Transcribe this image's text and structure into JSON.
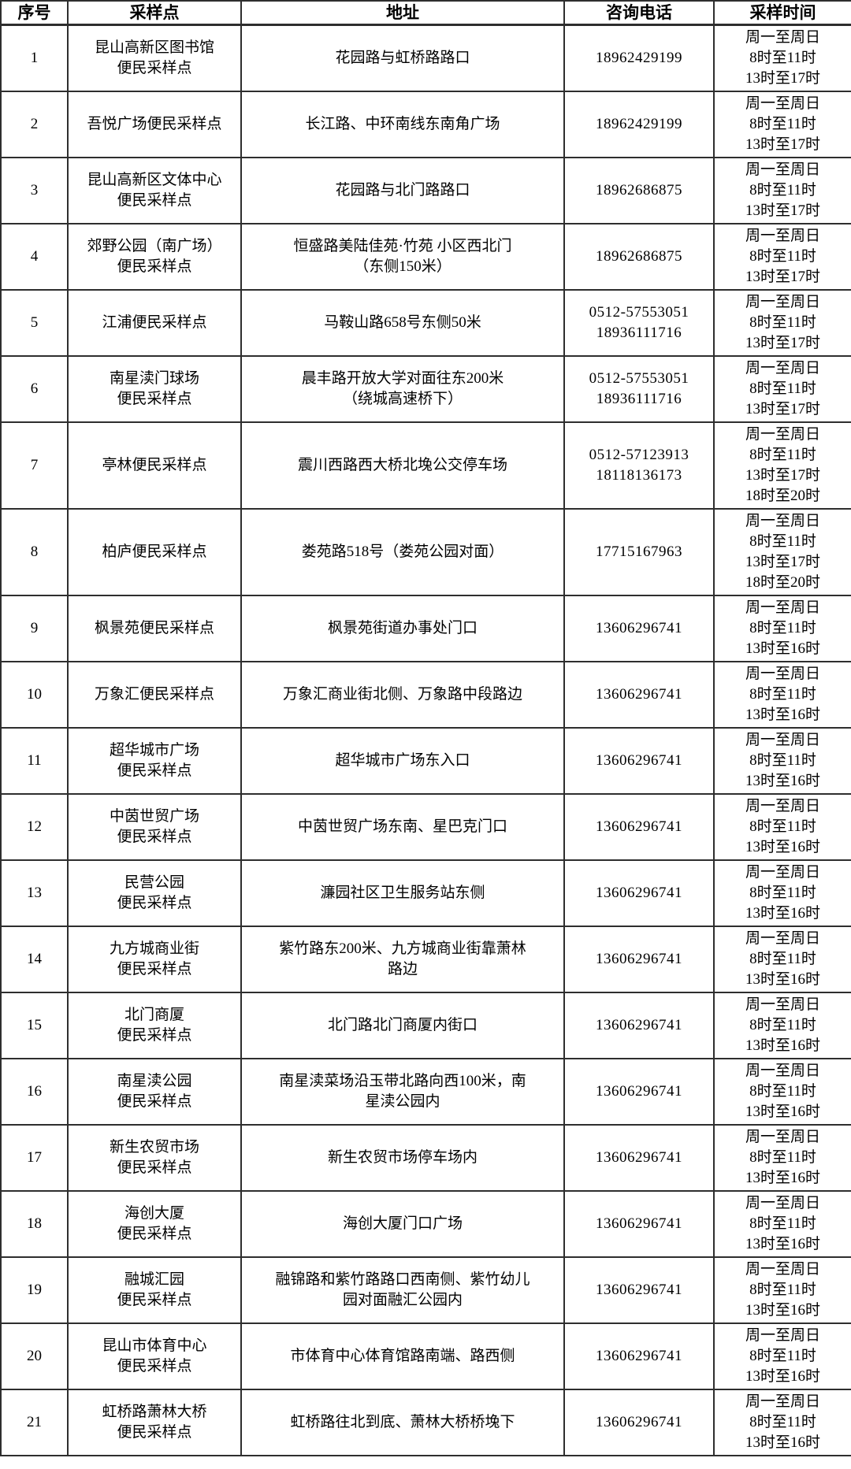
{
  "table": {
    "columns": [
      "序号",
      "采样点",
      "地址",
      "咨询电话",
      "采样时间"
    ],
    "rows": [
      {
        "no": "1",
        "site": "昆山高新区图书馆\n便民采样点",
        "address": "花园路与虹桥路路口",
        "phone": "18962429199",
        "time": "周一至周日\n8时至11时\n13时至17时"
      },
      {
        "no": "2",
        "site": "吾悦广场便民采样点",
        "address": "长江路、中环南线东南角广场",
        "phone": "18962429199",
        "time": "周一至周日\n8时至11时\n13时至17时"
      },
      {
        "no": "3",
        "site": "昆山高新区文体中心\n便民采样点",
        "address": "花园路与北门路路口",
        "phone": "18962686875",
        "time": "周一至周日\n8时至11时\n13时至17时"
      },
      {
        "no": "4",
        "site": "郊野公园（南广场）\n便民采样点",
        "address": "恒盛路美陆佳苑·竹苑 小区西北门\n（东侧150米）",
        "phone": "18962686875",
        "time": "周一至周日\n8时至11时\n13时至17时"
      },
      {
        "no": "5",
        "site": "江浦便民采样点",
        "address": "马鞍山路658号东侧50米",
        "phone": "0512-57553051\n18936111716",
        "time": "周一至周日\n8时至11时\n13时至17时"
      },
      {
        "no": "6",
        "site": "南星渎门球场\n便民采样点",
        "address": "晨丰路开放大学对面往东200米\n（绕城高速桥下）",
        "phone": "0512-57553051\n18936111716",
        "time": "周一至周日\n8时至11时\n13时至17时"
      },
      {
        "no": "7",
        "site": "亭林便民采样点",
        "address": "震川西路西大桥北堍公交停车场",
        "phone": "0512-57123913\n18118136173",
        "time": "周一至周日\n8时至11时\n13时至17时\n18时至20时"
      },
      {
        "no": "8",
        "site": "柏庐便民采样点",
        "address": "娄苑路518号（娄苑公园对面）",
        "phone": "17715167963",
        "time": "周一至周日\n8时至11时\n13时至17时\n18时至20时"
      },
      {
        "no": "9",
        "site": "枫景苑便民采样点",
        "address": "枫景苑街道办事处门口",
        "phone": "13606296741",
        "time": "周一至周日\n8时至11时\n13时至16时"
      },
      {
        "no": "10",
        "site": "万象汇便民采样点",
        "address": "万象汇商业街北侧、万象路中段路边",
        "phone": "13606296741",
        "time": "周一至周日\n8时至11时\n13时至16时"
      },
      {
        "no": "11",
        "site": "超华城市广场\n便民采样点",
        "address": "超华城市广场东入口",
        "phone": "13606296741",
        "time": "周一至周日\n8时至11时\n13时至16时"
      },
      {
        "no": "12",
        "site": "中茵世贸广场\n便民采样点",
        "address": "中茵世贸广场东南、星巴克门口",
        "phone": "13606296741",
        "time": "周一至周日\n8时至11时\n13时至16时"
      },
      {
        "no": "13",
        "site": "民营公园\n便民采样点",
        "address": "濂园社区卫生服务站东侧",
        "phone": "13606296741",
        "time": "周一至周日\n8时至11时\n13时至16时"
      },
      {
        "no": "14",
        "site": "九方城商业街\n便民采样点",
        "address": "紫竹路东200米、九方城商业街靠萧林\n路边",
        "phone": "13606296741",
        "time": "周一至周日\n8时至11时\n13时至16时"
      },
      {
        "no": "15",
        "site": "北门商厦\n便民采样点",
        "address": "北门路北门商厦内街口",
        "phone": "13606296741",
        "time": "周一至周日\n8时至11时\n13时至16时"
      },
      {
        "no": "16",
        "site": "南星渎公园\n便民采样点",
        "address": "南星渎菜场沿玉带北路向西100米，南\n星渎公园内",
        "phone": "13606296741",
        "time": "周一至周日\n8时至11时\n13时至16时"
      },
      {
        "no": "17",
        "site": "新生农贸市场\n便民采样点",
        "address": "新生农贸市场停车场内",
        "phone": "13606296741",
        "time": "周一至周日\n8时至11时\n13时至16时"
      },
      {
        "no": "18",
        "site": "海创大厦\n便民采样点",
        "address": "海创大厦门口广场",
        "phone": "13606296741",
        "time": "周一至周日\n8时至11时\n13时至16时"
      },
      {
        "no": "19",
        "site": "融城汇园\n便民采样点",
        "address": "融锦路和紫竹路路口西南侧、紫竹幼儿\n园对面融汇公园内",
        "phone": "13606296741",
        "time": "周一至周日\n8时至11时\n13时至16时"
      },
      {
        "no": "20",
        "site": "昆山市体育中心\n便民采样点",
        "address": "市体育中心体育馆路南端、路西侧",
        "phone": "13606296741",
        "time": "周一至周日\n8时至11时\n13时至16时"
      },
      {
        "no": "21",
        "site": "虹桥路萧林大桥\n便民采样点",
        "address": "虹桥路往北到底、萧林大桥桥堍下",
        "phone": "13606296741",
        "time": "周一至周日\n8时至11时\n13时至16时"
      }
    ]
  }
}
